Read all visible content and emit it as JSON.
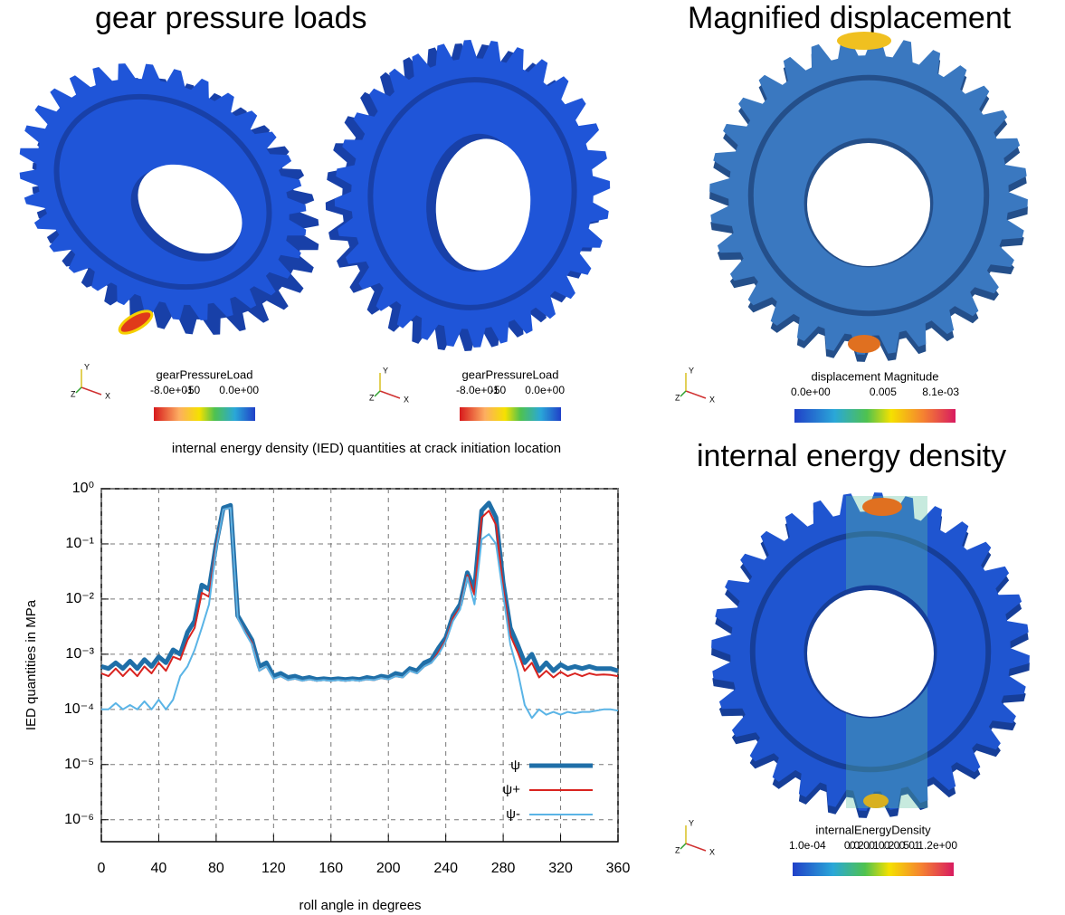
{
  "titles": {
    "pressure": "gear pressure loads",
    "displacement": "Magnified displacement",
    "energy": "internal energy density"
  },
  "colorbars": [
    {
      "title": "gearPressureLoad",
      "labels": [
        "-8.0e+01",
        "-50",
        "0.0e+00"
      ]
    },
    {
      "title": "gearPressureLoad",
      "labels": [
        "-8.0e+01",
        "-50",
        "0.0e+00"
      ]
    },
    {
      "title": "displacement Magnitude",
      "labels": [
        "0.0e+00",
        "0.005",
        "8.1e-03"
      ]
    },
    {
      "title": "internalEnergyDensity",
      "labels": [
        "1.0e-04",
        "0.002 0.01 0.02 0.05 0.1",
        "1.2e+00"
      ]
    }
  ],
  "triad": {
    "x": "X",
    "y": "Y",
    "z": "Z"
  },
  "chart_data": {
    "type": "line",
    "title": "internal energy density (IED) quantities at crack initiation location",
    "xlabel": "roll angle in degrees",
    "ylabel": "IED quantities in MPa",
    "xlim": [
      0,
      360
    ],
    "xticks": [
      0,
      40,
      80,
      120,
      160,
      200,
      240,
      280,
      320,
      360
    ],
    "ylim": [
      4e-07,
      1
    ],
    "log_y": true,
    "grid": true,
    "legend": "lower right",
    "yticks": [
      {
        "value": 1,
        "label": "10⁰"
      },
      {
        "value": 0.1,
        "label": "10⁻¹"
      },
      {
        "value": 0.01,
        "label": "10⁻²"
      },
      {
        "value": 0.001,
        "label": "10⁻³"
      },
      {
        "value": 0.0001,
        "label": "10⁻⁴"
      },
      {
        "value": 1e-05,
        "label": "10⁻⁵"
      },
      {
        "value": 1e-06,
        "label": "10⁻⁶"
      }
    ],
    "x": [
      0,
      5,
      10,
      15,
      20,
      25,
      30,
      35,
      40,
      45,
      50,
      55,
      60,
      65,
      70,
      75,
      80,
      85,
      90,
      95,
      100,
      105,
      110,
      115,
      120,
      125,
      130,
      135,
      140,
      145,
      150,
      155,
      160,
      165,
      170,
      175,
      180,
      185,
      190,
      195,
      200,
      205,
      210,
      215,
      220,
      225,
      230,
      235,
      240,
      245,
      250,
      255,
      260,
      265,
      270,
      275,
      280,
      285,
      290,
      295,
      300,
      305,
      310,
      315,
      320,
      325,
      330,
      335,
      340,
      345,
      350,
      355,
      360
    ],
    "series": [
      {
        "name": "ψ",
        "color": "#1f6fa8",
        "width": 5,
        "values": [
          0.0006,
          0.00055,
          0.0007,
          0.00055,
          0.00075,
          0.00055,
          0.0008,
          0.0006,
          0.0009,
          0.0007,
          0.0012,
          0.001,
          0.0025,
          0.004,
          0.018,
          0.015,
          0.1,
          0.45,
          0.5,
          0.005,
          0.003,
          0.0018,
          0.0006,
          0.0007,
          0.0004,
          0.00045,
          0.00038,
          0.0004,
          0.00036,
          0.00038,
          0.00035,
          0.00036,
          0.00035,
          0.00036,
          0.00035,
          0.00036,
          0.00035,
          0.00038,
          0.00036,
          0.0004,
          0.00038,
          0.00045,
          0.00042,
          0.00055,
          0.0005,
          0.0007,
          0.0008,
          0.0013,
          0.002,
          0.005,
          0.008,
          0.03,
          0.015,
          0.4,
          0.55,
          0.3,
          0.02,
          0.003,
          0.0015,
          0.0007,
          0.001,
          0.0005,
          0.0007,
          0.0005,
          0.00065,
          0.00055,
          0.0006,
          0.00055,
          0.0006,
          0.00055,
          0.00055,
          0.00055,
          0.0005
        ]
      },
      {
        "name": "ψ+",
        "color": "#d9231f",
        "width": 2,
        "values": [
          0.00045,
          0.0004,
          0.00055,
          0.0004,
          0.00055,
          0.0004,
          0.0006,
          0.00045,
          0.0007,
          0.0005,
          0.0009,
          0.0008,
          0.0018,
          0.003,
          0.013,
          0.011,
          0.09,
          0.42,
          0.45,
          0.0045,
          0.0026,
          0.0016,
          0.0005,
          0.0006,
          0.00036,
          0.0004,
          0.00034,
          0.00036,
          0.00033,
          0.00035,
          0.00033,
          0.00034,
          0.00033,
          0.00034,
          0.00033,
          0.00034,
          0.00033,
          0.00035,
          0.00034,
          0.00037,
          0.00035,
          0.0004,
          0.00038,
          0.0005,
          0.00045,
          0.0006,
          0.0007,
          0.0011,
          0.0018,
          0.0045,
          0.007,
          0.027,
          0.012,
          0.3,
          0.4,
          0.22,
          0.016,
          0.0022,
          0.0011,
          0.0005,
          0.0007,
          0.00038,
          0.0005,
          0.00038,
          0.00048,
          0.0004,
          0.00045,
          0.0004,
          0.00045,
          0.00042,
          0.00043,
          0.00042,
          0.0004
        ]
      },
      {
        "name": "ψ-",
        "color": "#5ab4e6",
        "width": 2,
        "values": [
          0.0001,
          0.0001,
          0.00013,
          0.0001,
          0.00012,
          0.0001,
          0.00014,
          0.0001,
          0.00015,
          0.0001,
          0.00015,
          0.0004,
          0.0006,
          0.0012,
          0.003,
          0.008,
          0.08,
          0.42,
          0.45,
          0.0045,
          0.0025,
          0.0015,
          0.0005,
          0.0006,
          0.00036,
          0.0004,
          0.00034,
          0.00036,
          0.00033,
          0.00035,
          0.00033,
          0.00034,
          0.00033,
          0.00034,
          0.00033,
          0.00034,
          0.00033,
          0.00035,
          0.00034,
          0.00037,
          0.00035,
          0.0004,
          0.00038,
          0.0005,
          0.00045,
          0.0006,
          0.0007,
          0.001,
          0.0017,
          0.004,
          0.0065,
          0.025,
          0.008,
          0.12,
          0.15,
          0.1,
          0.012,
          0.0015,
          0.0005,
          0.00012,
          7e-05,
          0.0001,
          8e-05,
          9e-05,
          8e-05,
          9e-05,
          8.5e-05,
          9e-05,
          9e-05,
          9.5e-05,
          0.0001,
          0.0001,
          9.5e-05
        ]
      }
    ]
  }
}
